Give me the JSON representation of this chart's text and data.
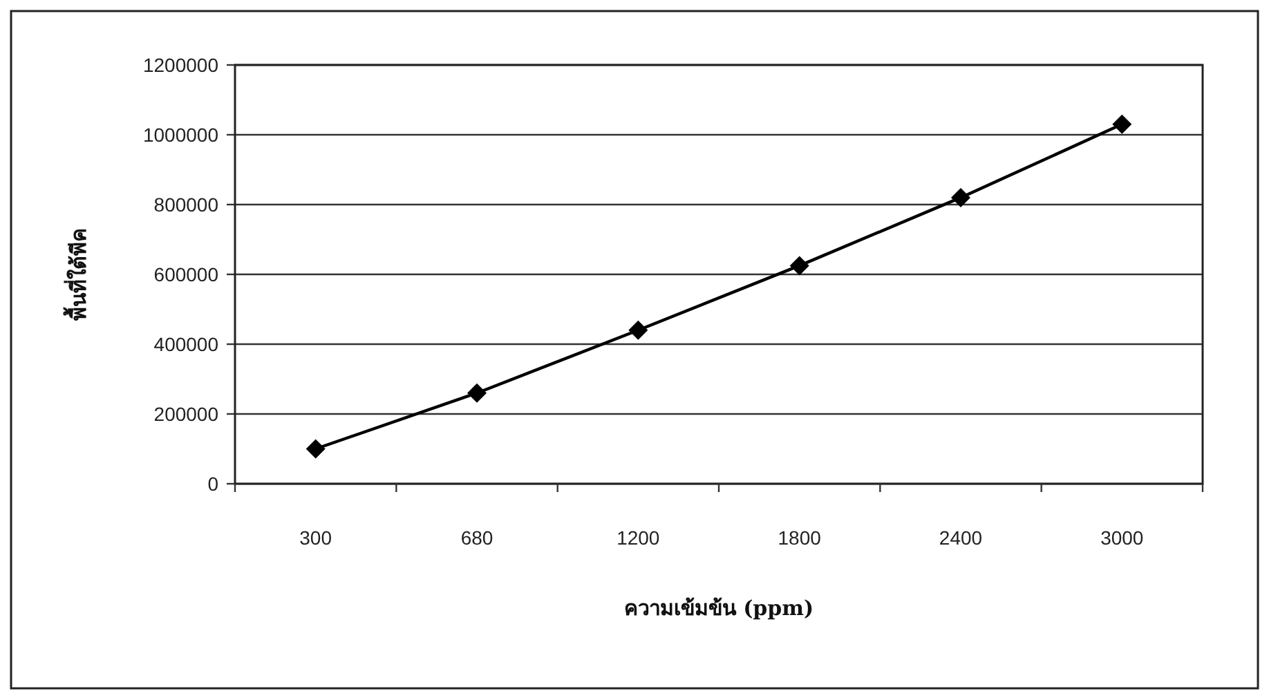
{
  "chart_data": {
    "type": "line",
    "xlabel": "ความเข้มข้น (ppm)",
    "ylabel": "พื้นที่ใต้พีค",
    "categories": [
      "300",
      "680",
      "1200",
      "1800",
      "2400",
      "3000"
    ],
    "series": [
      {
        "color": "#000000",
        "values": [
          100000,
          260000,
          440000,
          625000,
          820000,
          1030000
        ]
      }
    ],
    "ylim": [
      0,
      1200000
    ],
    "yticks": [
      0,
      200000,
      400000,
      600000,
      800000,
      1000000,
      1200000
    ],
    "grid": "y",
    "marker": "diamond",
    "line_style": "solid"
  }
}
